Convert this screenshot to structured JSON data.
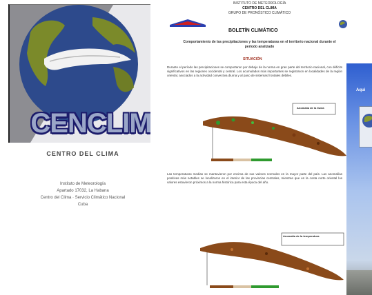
{
  "left_panel": {
    "logo_text": "CENCLIM",
    "caption_title": "CENTRO DEL CLIMA",
    "caption_lines": [
      "Instituto de Meteorología",
      "Apartado 17032, La Habana",
      "Centro del Clima · Servicio Climático Nacional",
      "Cuba"
    ]
  },
  "document": {
    "header_lines": [
      "INSTITUTO DE METEOROLOGÍA",
      "CENTRO DEL CLIMA",
      "GRUPO DE PRONÓSTICO CLIMÁTICO"
    ],
    "bulletin_title": "BOLETÍN CLIMÁTICO",
    "lead": "Comportamiento de las precipitaciones y las temperaturas en el territorio nacional durante el período analizado",
    "section_heading": "SITUACIÓN",
    "paragraph_1": "Durante el período las precipitaciones se comportaron por debajo de la norma en gran parte del territorio nacional, con déficits significativos en las regiones occidental y central. Los acumulados más importantes se registraron en localidades de la región oriental, asociados a la actividad convectiva diurna y al paso de sistemas frontales débiles.",
    "paragraph_2": "Las temperaturas medias se mantuvieron por encima de sus valores normales en la mayor parte del país. Las anomalías positivas más notables se localizaron en el interior de las provincias centrales, mientras que en la costa norte oriental los valores estuvieron próximos a la norma histórica para esta época del año.",
    "map_1_label": "Anomalía de la lluvia",
    "map_2_label": "Anomalía de la temperatura"
  },
  "photo_panel": {
    "edge_text": "Aqui"
  },
  "colors": {
    "logo_globe": "#2d4a8c",
    "logo_land": "#7b8a2a",
    "map_brown": "#8a4a1a",
    "map_green": "#2f9a2f"
  }
}
